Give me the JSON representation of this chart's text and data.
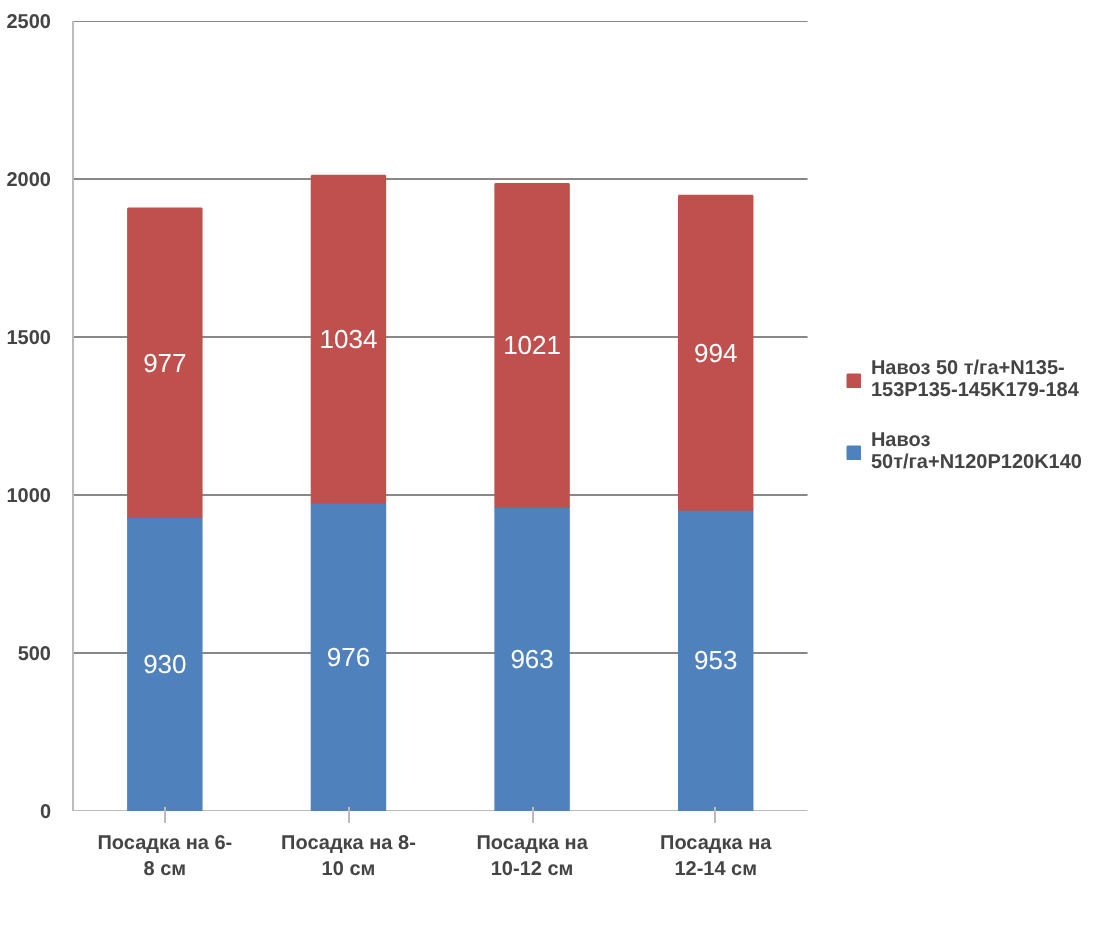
{
  "chart_data": {
    "type": "bar",
    "stacked": true,
    "categories": [
      "Посадка на 6-8 см",
      "Посадка на 8-10 см",
      "Посадка на 10-12 см",
      "Посадка на 12-14 см"
    ],
    "series": [
      {
        "name": "Навоз 50т/га+N120P120K140",
        "color": "#4f81bd",
        "values": [
          930,
          976,
          963,
          953
        ]
      },
      {
        "name": "Навоз 50 т/га+N135-153P135-145K179-184",
        "color": "#c0504d",
        "values": [
          977,
          1034,
          1021,
          994
        ]
      }
    ],
    "ylim": [
      0,
      2500
    ],
    "yticks": [
      0,
      500,
      1000,
      1500,
      2000,
      2500
    ],
    "grid": "y",
    "legend": "right",
    "data_labels": true
  }
}
